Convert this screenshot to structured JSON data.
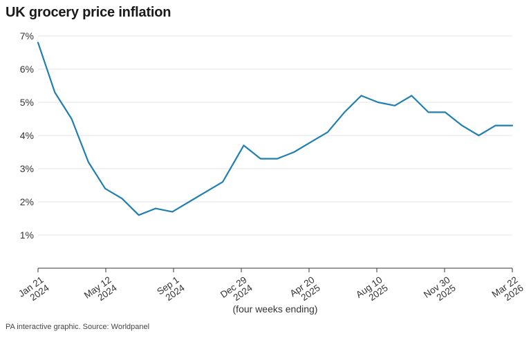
{
  "title": "UK grocery price inflation",
  "source": "PA interactive graphic. Source: Worldpanel",
  "colors": {
    "line": "#1f7fb0",
    "grid": "#e6e6e6",
    "axis": "#333333"
  },
  "chart_data": {
    "type": "line",
    "title": "UK grocery price inflation",
    "xlabel": "(four weeks ending)",
    "ylabel": "",
    "ylim": [
      0,
      7
    ],
    "y_ticks": [
      "1%",
      "2%",
      "3%",
      "4%",
      "5%",
      "6%",
      "7%"
    ],
    "x_ticks": [
      [
        "Jan 21",
        "2024"
      ],
      [
        "May 12",
        "2024"
      ],
      [
        "Sep 1",
        "2024"
      ],
      [
        "Dec 29",
        "2024"
      ],
      [
        "Apr 20",
        "2025"
      ],
      [
        "Aug 10",
        "2025"
      ],
      [
        "Nov 30",
        "2025"
      ],
      [
        "Mar 22",
        "2026"
      ]
    ],
    "grid": true,
    "series": [
      {
        "x": [
          "2024-01-21",
          "2024-02-18",
          "2024-03-17",
          "2024-04-14",
          "2024-05-12",
          "2024-06-09",
          "2024-07-07",
          "2024-08-04",
          "2024-09-01",
          "2024-09-29",
          "2024-10-27",
          "2024-11-24",
          "2024-12-29",
          "2025-01-26",
          "2025-02-23",
          "2025-03-23",
          "2025-04-20",
          "2025-05-18",
          "2025-06-15",
          "2025-07-13",
          "2025-08-10",
          "2025-09-07",
          "2025-10-05",
          "2025-11-02",
          "2025-11-30",
          "2025-12-28",
          "2026-01-25",
          "2026-02-22",
          "2026-03-22"
        ],
        "values": [
          6.8,
          5.3,
          4.5,
          3.2,
          2.4,
          2.1,
          1.6,
          1.8,
          1.7,
          2.0,
          2.3,
          2.6,
          3.7,
          3.3,
          3.3,
          3.5,
          3.8,
          4.1,
          4.7,
          5.2,
          5.0,
          4.9,
          5.2,
          4.7,
          4.7,
          4.3,
          4.0,
          4.3,
          4.3
        ]
      }
    ]
  }
}
